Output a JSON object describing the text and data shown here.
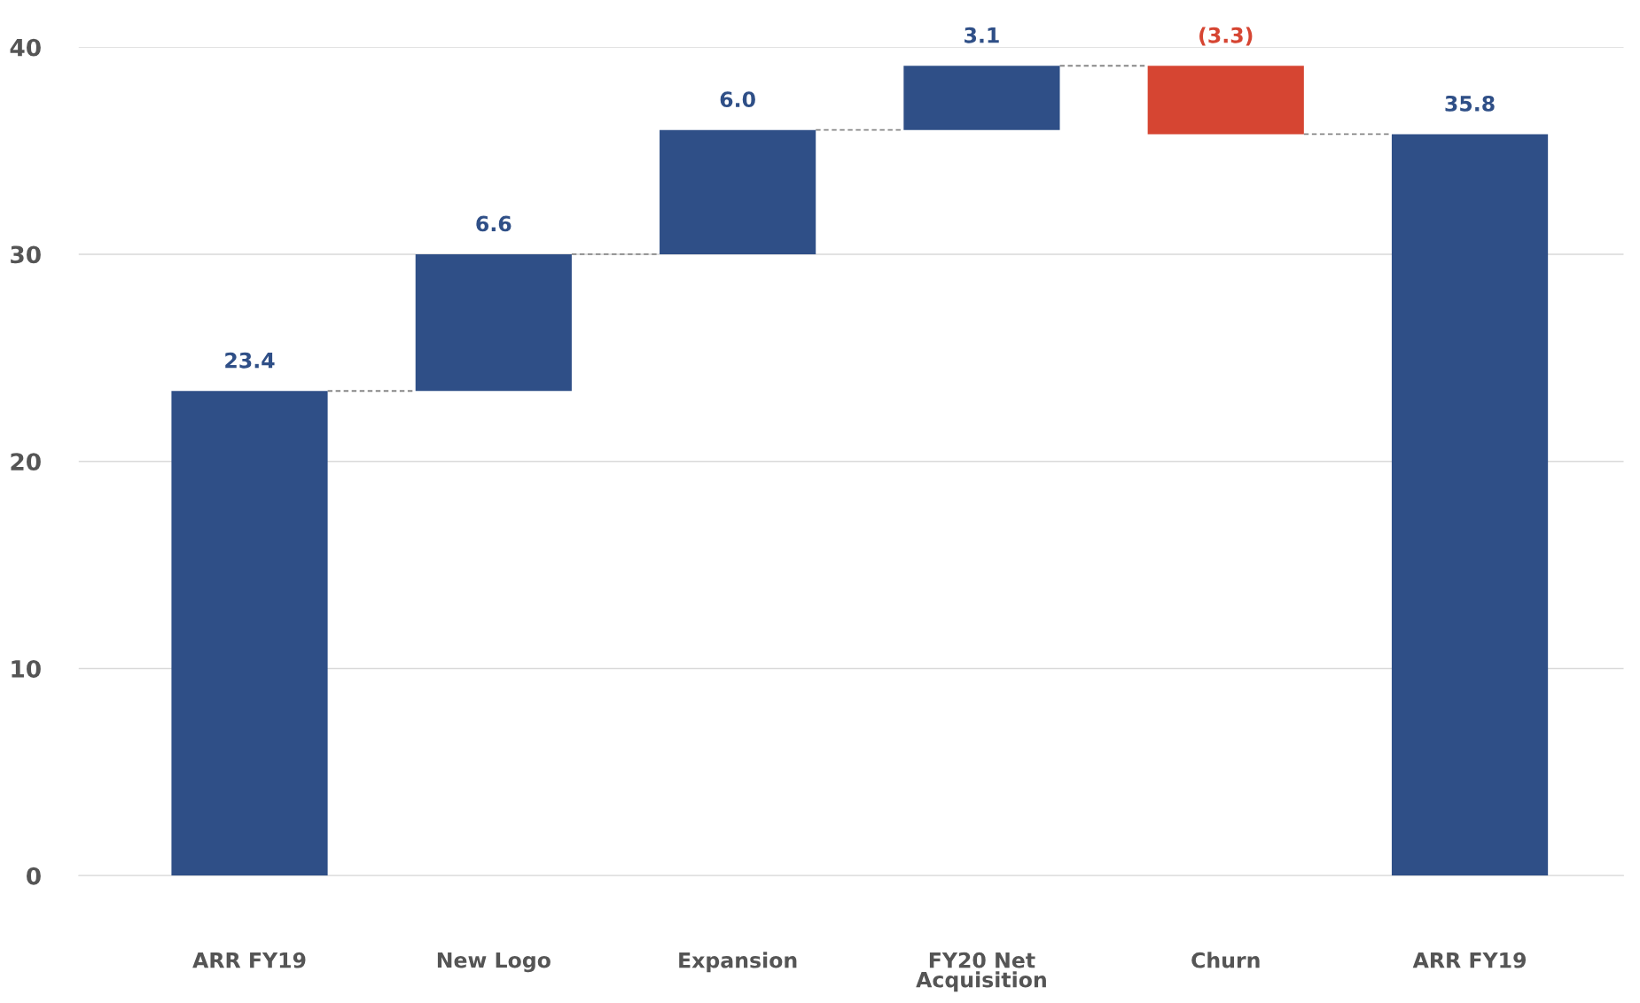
{
  "chart_data": {
    "type": "bar",
    "categories": [
      "ARR FY19",
      "New Logo",
      "Expansion",
      "FY20 Net\nAcquisition",
      "Churn",
      "ARR FY19"
    ],
    "values": [
      23.4,
      6.6,
      6.0,
      3.1,
      -3.3,
      35.8
    ],
    "base": [
      0,
      23.4,
      30.0,
      36.0,
      39.1,
      0
    ],
    "colors": [
      "#2f4f87",
      "#2f4f87",
      "#2f4f87",
      "#2f4f87",
      "#d64532",
      "#2f4f87"
    ],
    "value_labels": [
      "23.4",
      "6.6",
      "6.0",
      "3.1",
      "(3.3)",
      "35.8"
    ],
    "ylim": [
      0,
      40
    ],
    "yticks": [
      0,
      10,
      20,
      30,
      40
    ],
    "grid": "y"
  }
}
